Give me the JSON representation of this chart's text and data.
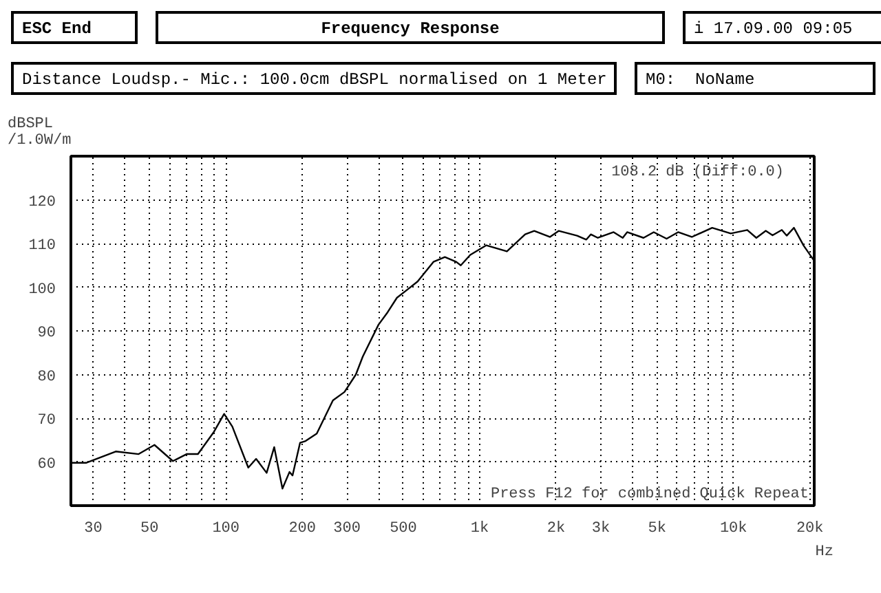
{
  "chart_data": {
    "type": "line",
    "title": "Frequency Response",
    "subtitle": "Distance Loudsp.- Mic.: 100.0cm dBSPL normalised on 1 Meter",
    "ylabel": "dBSPL\n/1.0W/m",
    "annotations": [
      "ESC End",
      "i 17.09.00 09:05",
      "M0:  NoName",
      "108.2 dB (Diff:0.0)",
      "Press F12 for combined Quick Repeat"
    ],
    "x": [
      24.5,
      28.1,
      36.8,
      45.3,
      52.3,
      61.8,
      70,
      77.6,
      89.7,
      98.4,
      106,
      122.5,
      131.5,
      144.7,
      155,
      167,
      178,
      183,
      196,
      206,
      228,
      264,
      293,
      325,
      346,
      399,
      434,
      472,
      512,
      569,
      657,
      729,
      808,
      842,
      918,
      1062,
      1280,
      1510,
      1640,
      1890,
      2050,
      2420,
      2630,
      2740,
      2920,
      3370,
      3660,
      3810,
      4420,
      4850,
      5450,
      6050,
      6850,
      8240,
      9750,
      11330,
      12300,
      13400,
      14250,
      15500,
      16200,
      17300,
      18900,
      20700
    ],
    "series": [
      {
        "color": "#000000",
        "values": [
          59.8,
          59.8,
          62.4,
          61.8,
          63.9,
          60.2,
          61.8,
          61.8,
          66.9,
          71,
          68.1,
          58.7,
          60.7,
          57.5,
          63.4,
          53.9,
          57.7,
          56.9,
          64.4,
          64.8,
          66.5,
          74.1,
          76.0,
          80,
          84.1,
          91.4,
          94.3,
          97.6,
          99.2,
          101.3,
          105.8,
          106.9,
          105.8,
          105,
          107.4,
          109.6,
          108.2,
          112.1,
          112.9,
          111.5,
          112.9,
          111.8,
          110.9,
          112.1,
          111.3,
          112.6,
          111.3,
          112.6,
          111.3,
          112.6,
          111.1,
          112.6,
          111.5,
          113.6,
          112.3,
          113.1,
          111.3,
          112.9,
          111.9,
          113.1,
          111.8,
          113.6,
          109.5,
          106.2
        ]
      }
    ],
    "log": "x",
    "xlim": [
      24.5,
      20800
    ],
    "ylim": [
      50,
      130
    ],
    "xticks": [
      30,
      {
        "value": 40,
        "label": null
      },
      50,
      {
        "value": 60,
        "label": null
      },
      {
        "value": 70,
        "label": null
      },
      {
        "value": 80,
        "label": null
      },
      {
        "value": 90,
        "label": null
      },
      100,
      200,
      300,
      {
        "value": 400,
        "label": null
      },
      500,
      {
        "value": 600,
        "label": null
      },
      {
        "value": 700,
        "label": null
      },
      {
        "value": 800,
        "label": null
      },
      {
        "value": 900,
        "label": null
      },
      {
        "value": 1000,
        "label": "1k"
      },
      {
        "value": 2000,
        "label": "2k"
      },
      {
        "value": 3000,
        "label": "3k"
      },
      {
        "value": 4000,
        "label": null
      },
      {
        "value": 5000,
        "label": "5k"
      },
      {
        "value": 6000,
        "label": null
      },
      {
        "value": 7000,
        "label": null
      },
      {
        "value": 8000,
        "label": null
      },
      {
        "value": 9000,
        "label": null
      },
      {
        "value": 10000,
        "label": "10k"
      },
      {
        "value": 20000,
        "label": "20k"
      }
    ],
    "xlabel": "Hz",
    "yticks": [
      60,
      70,
      80,
      90,
      100,
      110,
      120
    ],
    "grid": true,
    "line_style": "solid",
    "marker": "none"
  }
}
